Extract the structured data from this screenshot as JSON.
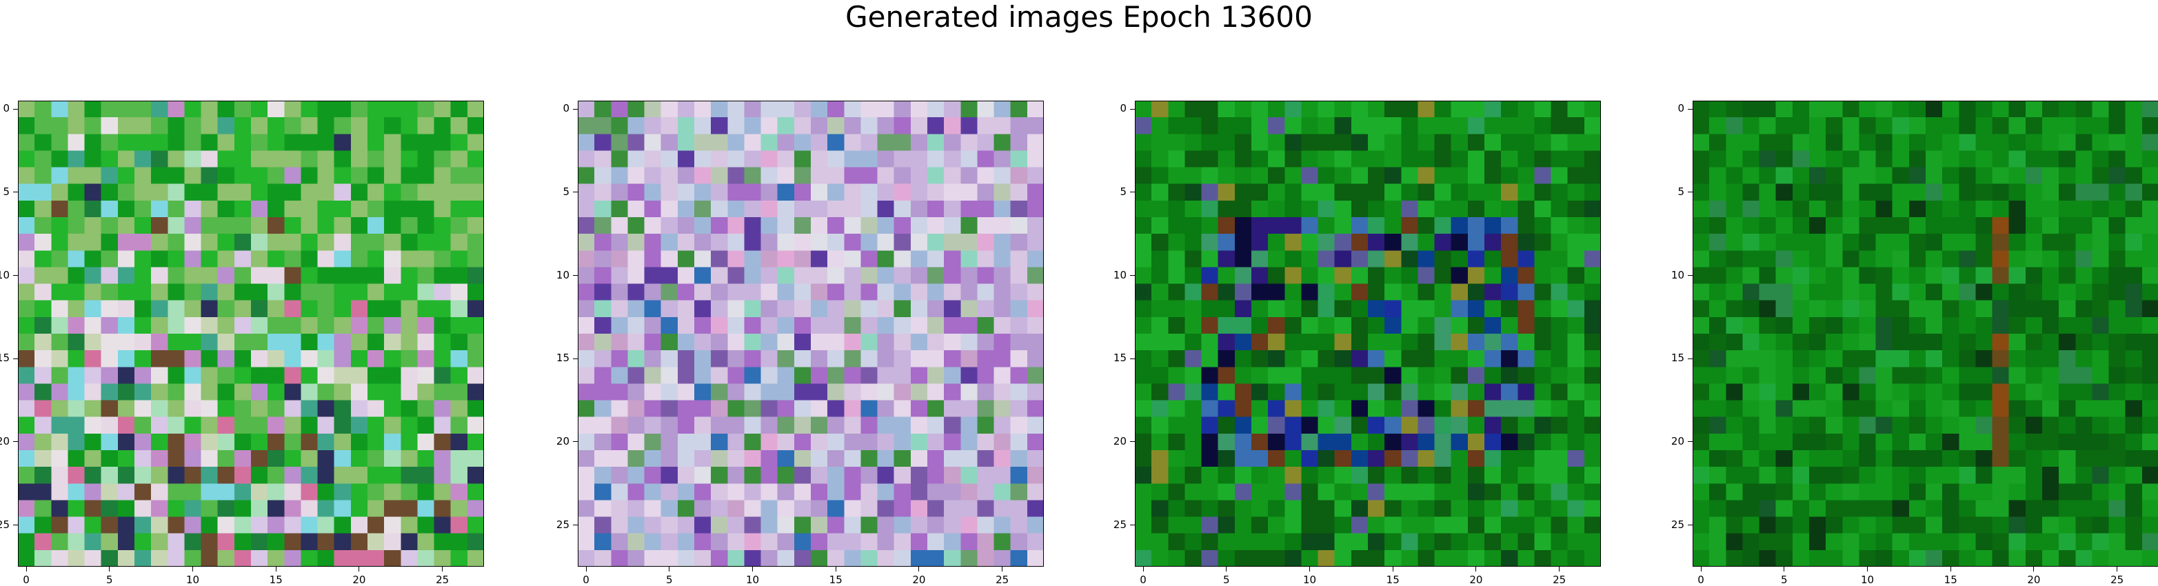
{
  "figure": {
    "title": "Generated images Epoch 13600"
  },
  "axes": {
    "x_ticks": [
      "0",
      "5",
      "10",
      "15",
      "20",
      "25"
    ],
    "y_ticks": [
      "0",
      "5",
      "10",
      "15",
      "20",
      "25"
    ],
    "tick_values": [
      0,
      5,
      10,
      15,
      20,
      25
    ],
    "extent": [
      -0.5,
      27.5
    ]
  },
  "images": [
    {
      "name": "generated-image-1",
      "grid": 28,
      "palette": [
        "#0f9a1f",
        "#23b52c",
        "#55b84a",
        "#8fc16e",
        "#c9d6b4",
        "#e8e2e6",
        "#d8c7e6",
        "#b98fd0",
        "#7fd7e2",
        "#c58bc9",
        "#3fa58a",
        "#1d7f3c",
        "#6c4a2e",
        "#2a2e5a",
        "#d4709e",
        "#e7d8e6",
        "#a7e0b9"
      ],
      "style": "green-top-pastel-bottom"
    },
    {
      "name": "generated-image-2",
      "grid": 28,
      "palette": [
        "#d9c6e2",
        "#c8b4dd",
        "#b49ad0",
        "#a66cc8",
        "#e6d7ea",
        "#cdd4e7",
        "#9fb8d9",
        "#8fd6c1",
        "#e3a9d6",
        "#7a5aa8",
        "#5b3aa0",
        "#2e6fb6",
        "#6aa06c",
        "#e0e0e8",
        "#c9a0c9",
        "#3a8f3a",
        "#b9c9b1"
      ],
      "style": "pastel-lavender"
    },
    {
      "name": "generated-image-3",
      "grid": 28,
      "palette": [
        "#0a7a12",
        "#0f8f18",
        "#139a1c",
        "#1cae2a",
        "#0c5e10",
        "#0a3f8f",
        "#1a2f9f",
        "#2b1a7a",
        "#3a6fb3",
        "#0b0b3a",
        "#6a3a1a",
        "#3a9a6a",
        "#5a5a9a",
        "#2aa05a",
        "#0b4a1a",
        "#8a8a2a"
      ],
      "style": "dark-green-blue-core"
    },
    {
      "name": "generated-image-4",
      "grid": 28,
      "palette": [
        "#0a7a12",
        "#0d8a16",
        "#129a1c",
        "#18a324",
        "#0b6a10",
        "#096010",
        "#1fa83a",
        "#2a8a4a",
        "#145a2a",
        "#0a3a12",
        "#6a4a1a",
        "#8a4a12",
        "#1a6a3a",
        "#0f7f2a",
        "#24b02a"
      ],
      "style": "green-streaks"
    }
  ]
}
